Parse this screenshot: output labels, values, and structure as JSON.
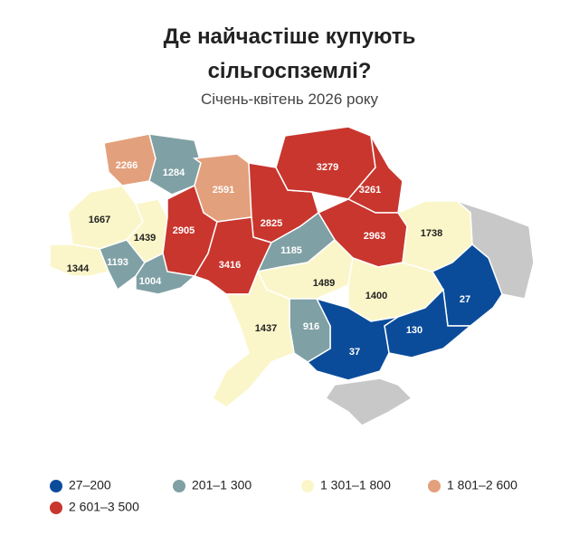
{
  "header": {
    "title": "Де найчастіше купують сільгоспземлі?",
    "subtitle": "Січень-квітень 2026 року"
  },
  "legend": [
    {
      "label": "27–200",
      "color": "#0b4c9a"
    },
    {
      "label": "201–1 300",
      "color": "#7fa0a4"
    },
    {
      "label": "1 301–1 800",
      "color": "#fbf6c9"
    },
    {
      "label": "1 801–2 600",
      "color": "#e3a07c"
    },
    {
      "label": "2 601–3 500",
      "color": "#c8362e"
    }
  ],
  "regions": [
    {
      "value": 2266,
      "color": "#e3a07c"
    },
    {
      "value": 1284,
      "color": "#7fa0a4"
    },
    {
      "value": 2591,
      "color": "#e3a07c"
    },
    {
      "value": 2825,
      "color": "#c8362e"
    },
    {
      "value": 3279,
      "color": "#c8362e"
    },
    {
      "value": 3261,
      "color": "#c8362e"
    },
    {
      "value": 2963,
      "color": "#c8362e"
    },
    {
      "value": 1738,
      "color": "#fbf6c9"
    },
    {
      "value": 1667,
      "color": "#fbf6c9"
    },
    {
      "value": 1439,
      "color": "#fbf6c9"
    },
    {
      "value": 2905,
      "color": "#c8362e"
    },
    {
      "value": 3416,
      "color": "#c8362e"
    },
    {
      "value": 1344,
      "color": "#fbf6c9"
    },
    {
      "value": 1193,
      "color": "#7fa0a4"
    },
    {
      "value": 1004,
      "color": "#7fa0a4"
    },
    {
      "value": 1185,
      "color": "#7fa0a4"
    },
    {
      "value": 1489,
      "color": "#fbf6c9"
    },
    {
      "value": 1400,
      "color": "#fbf6c9"
    },
    {
      "value": 27,
      "color": "#0b4c9a"
    },
    {
      "value": 130,
      "color": "#0b4c9a"
    },
    {
      "value": 37,
      "color": "#0b4c9a"
    },
    {
      "value": 916,
      "color": "#7fa0a4"
    },
    {
      "value": 1437,
      "color": "#fbf6c9"
    }
  ]
}
